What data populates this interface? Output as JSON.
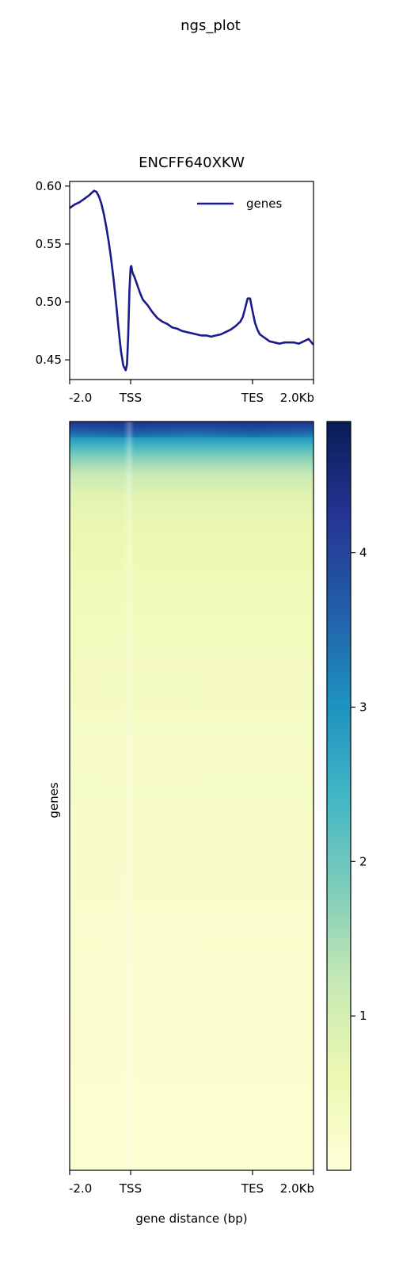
{
  "figure_title": "ngs_plot",
  "chart_data": [
    {
      "type": "line",
      "title": "ENCFF640XKW",
      "xlabel": "",
      "ylabel": "",
      "x_ticks": [
        "-2.0",
        "TSS",
        "TES",
        "2.0Kb"
      ],
      "y_ticks": [
        "0.45",
        "0.50",
        "0.55",
        "0.60"
      ],
      "ylim": [
        0.433,
        0.604
      ],
      "xlim": [
        0,
        100
      ],
      "grid": false,
      "legend": "top-right",
      "series": [
        {
          "name": "genes",
          "color": "#1a1a8c",
          "x": [
            0,
            2,
            4,
            6,
            8,
            9,
            10,
            11,
            12,
            13,
            14,
            15,
            16,
            17,
            18,
            19,
            20,
            21,
            22,
            23,
            23.5,
            24,
            24.5,
            25,
            25.3,
            25.6,
            26,
            26.5,
            27,
            28,
            29,
            30,
            32,
            34,
            36,
            38,
            40,
            42,
            44,
            46,
            48,
            50,
            52,
            54,
            56,
            58,
            60,
            62,
            64,
            66,
            68,
            70,
            71,
            72,
            73,
            74,
            75,
            76,
            77,
            78,
            80,
            82,
            84,
            86,
            88,
            90,
            92,
            94,
            96,
            98,
            100
          ],
          "y": [
            0.581,
            0.584,
            0.586,
            0.589,
            0.592,
            0.594,
            0.596,
            0.595,
            0.591,
            0.585,
            0.576,
            0.565,
            0.552,
            0.537,
            0.52,
            0.5,
            0.478,
            0.458,
            0.445,
            0.441,
            0.446,
            0.47,
            0.51,
            0.53,
            0.531,
            0.527,
            0.524,
            0.522,
            0.519,
            0.513,
            0.507,
            0.502,
            0.497,
            0.491,
            0.486,
            0.483,
            0.481,
            0.478,
            0.477,
            0.475,
            0.474,
            0.473,
            0.472,
            0.471,
            0.471,
            0.47,
            0.471,
            0.472,
            0.474,
            0.476,
            0.479,
            0.483,
            0.487,
            0.495,
            0.503,
            0.503,
            0.492,
            0.482,
            0.476,
            0.472,
            0.469,
            0.466,
            0.465,
            0.464,
            0.465,
            0.465,
            0.465,
            0.464,
            0.466,
            0.468,
            0.463
          ]
        }
      ]
    },
    {
      "type": "heatmap",
      "xlabel": "gene distance (bp)",
      "ylabel": "genes",
      "x_ticks": [
        "-2.0",
        "TSS",
        "TES",
        "2.0Kb"
      ],
      "colormap": "YlGnBu",
      "colorbar_range": [
        0.0,
        4.85
      ],
      "colorbar_ticks": [
        "1",
        "2",
        "3",
        "4"
      ],
      "row_profile": [
        {
          "frac": 0.0,
          "value": 4.2
        },
        {
          "frac": 0.01,
          "value": 3.7
        },
        {
          "frac": 0.02,
          "value": 3.0
        },
        {
          "frac": 0.035,
          "value": 2.3
        },
        {
          "frac": 0.05,
          "value": 1.7
        },
        {
          "frac": 0.07,
          "value": 1.2
        },
        {
          "frac": 0.1,
          "value": 0.8
        },
        {
          "frac": 0.15,
          "value": 0.6
        },
        {
          "frac": 0.25,
          "value": 0.45
        },
        {
          "frac": 0.4,
          "value": 0.32
        },
        {
          "frac": 0.6,
          "value": 0.22
        },
        {
          "frac": 0.8,
          "value": 0.15
        },
        {
          "frac": 1.0,
          "value": 0.1
        }
      ]
    }
  ]
}
